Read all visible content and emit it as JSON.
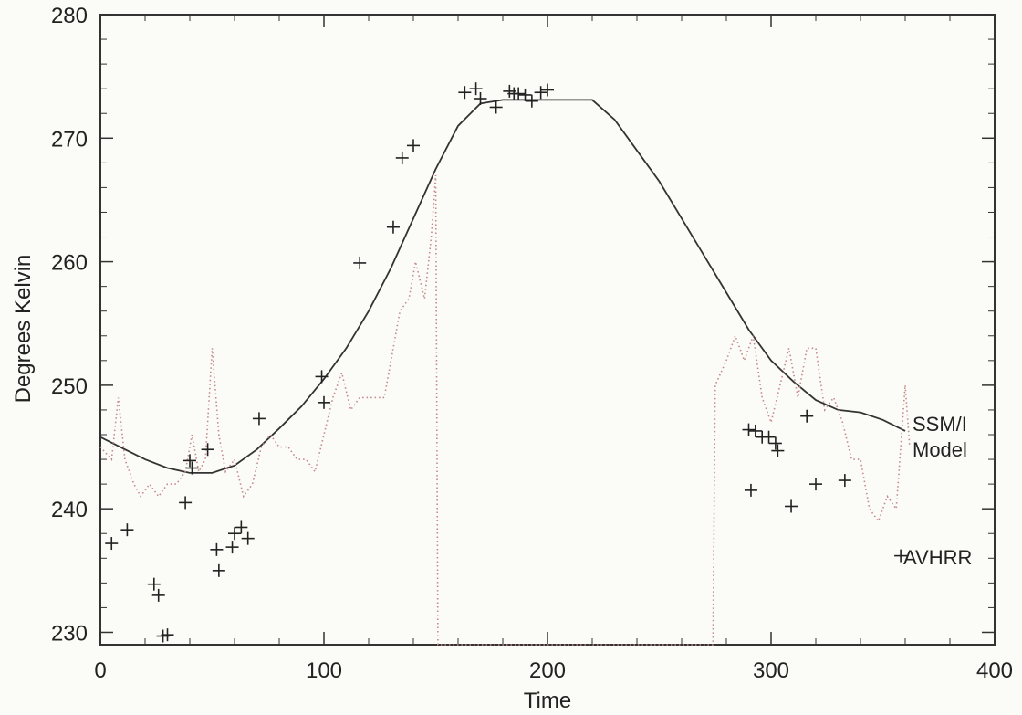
{
  "chart_data": {
    "type": "line",
    "title": "",
    "xlabel": "Time",
    "ylabel": "Degrees Kelvin",
    "xlim": [
      0,
      400
    ],
    "ylim": [
      229,
      280
    ],
    "xticks": [
      0,
      100,
      200,
      300,
      400
    ],
    "yticks": [
      230,
      240,
      250,
      260,
      270,
      280
    ],
    "grid": false,
    "legend": "inline-right",
    "series": [
      {
        "name": "Model",
        "style": "solid",
        "points": [
          [
            0,
            245.8
          ],
          [
            10,
            244.9
          ],
          [
            20,
            244.0
          ],
          [
            30,
            243.3
          ],
          [
            40,
            242.9
          ],
          [
            50,
            242.9
          ],
          [
            60,
            243.5
          ],
          [
            70,
            244.8
          ],
          [
            80,
            246.5
          ],
          [
            90,
            248.3
          ],
          [
            100,
            250.5
          ],
          [
            110,
            253.0
          ],
          [
            120,
            256.0
          ],
          [
            130,
            259.5
          ],
          [
            140,
            263.5
          ],
          [
            150,
            267.5
          ],
          [
            160,
            271.0
          ],
          [
            170,
            272.8
          ],
          [
            180,
            273.1
          ],
          [
            220,
            273.1
          ],
          [
            230,
            271.5
          ],
          [
            240,
            269.0
          ],
          [
            250,
            266.5
          ],
          [
            260,
            263.5
          ],
          [
            270,
            260.5
          ],
          [
            280,
            257.5
          ],
          [
            290,
            254.5
          ],
          [
            300,
            252.0
          ],
          [
            310,
            250.3
          ],
          [
            320,
            248.8
          ],
          [
            330,
            248.0
          ],
          [
            340,
            247.8
          ],
          [
            350,
            247.2
          ],
          [
            360,
            246.3
          ]
        ]
      },
      {
        "name": "SSM/I",
        "style": "dotted",
        "points": [
          [
            0,
            245
          ],
          [
            5,
            244
          ],
          [
            8,
            249
          ],
          [
            11,
            244
          ],
          [
            15,
            242
          ],
          [
            18,
            241
          ],
          [
            22,
            242
          ],
          [
            26,
            241
          ],
          [
            30,
            242
          ],
          [
            34,
            242
          ],
          [
            38,
            243
          ],
          [
            41,
            246
          ],
          [
            44,
            243
          ],
          [
            47,
            244
          ],
          [
            50,
            253
          ],
          [
            53,
            246
          ],
          [
            56,
            243
          ],
          [
            60,
            244
          ],
          [
            64,
            241
          ],
          [
            68,
            242
          ],
          [
            72,
            245
          ],
          [
            76,
            246
          ],
          [
            80,
            245
          ],
          [
            84,
            245
          ],
          [
            88,
            244
          ],
          [
            92,
            244
          ],
          [
            96,
            243
          ],
          [
            100,
            246
          ],
          [
            104,
            249
          ],
          [
            108,
            251
          ],
          [
            112,
            248
          ],
          [
            116,
            249
          ],
          [
            120,
            249
          ],
          [
            124,
            249
          ],
          [
            127,
            249
          ],
          [
            130,
            252
          ],
          [
            134,
            256
          ],
          [
            138,
            257
          ],
          [
            141,
            260
          ],
          [
            145,
            257
          ],
          [
            148,
            262
          ],
          [
            150,
            267
          ],
          [
            151,
            229
          ],
          [
            274,
            229
          ],
          [
            275,
            250
          ],
          [
            280,
            252
          ],
          [
            284,
            254
          ],
          [
            288,
            252
          ],
          [
            292,
            254
          ],
          [
            296,
            249
          ],
          [
            300,
            247
          ],
          [
            304,
            250
          ],
          [
            308,
            253
          ],
          [
            312,
            249
          ],
          [
            316,
            253
          ],
          [
            320,
            253
          ],
          [
            324,
            248
          ],
          [
            328,
            249
          ],
          [
            332,
            247
          ],
          [
            336,
            244
          ],
          [
            340,
            244
          ],
          [
            344,
            240
          ],
          [
            348,
            239
          ],
          [
            352,
            241
          ],
          [
            356,
            240
          ],
          [
            360,
            250
          ],
          [
            362,
            245
          ]
        ]
      },
      {
        "name": "AVHRR",
        "style": "markers",
        "points": [
          [
            5,
            237.2
          ],
          [
            12,
            238.3
          ],
          [
            24,
            233.9
          ],
          [
            26,
            233.0
          ],
          [
            28,
            229.7
          ],
          [
            30,
            229.8
          ],
          [
            38,
            240.5
          ],
          [
            40,
            243.9
          ],
          [
            41,
            243.3
          ],
          [
            48,
            244.8
          ],
          [
            52,
            236.7
          ],
          [
            53,
            235.0
          ],
          [
            59,
            236.9
          ],
          [
            60,
            238.0
          ],
          [
            63,
            238.5
          ],
          [
            66,
            237.6
          ],
          [
            71,
            247.3
          ],
          [
            99,
            250.7
          ],
          [
            100,
            248.6
          ],
          [
            116,
            259.9
          ],
          [
            131,
            262.8
          ],
          [
            135,
            268.4
          ],
          [
            140,
            269.4
          ],
          [
            163,
            273.7
          ],
          [
            168,
            274.0
          ],
          [
            170,
            273.2
          ],
          [
            177,
            272.5
          ],
          [
            183,
            273.8
          ],
          [
            185,
            273.6
          ],
          [
            187,
            273.6
          ],
          [
            190,
            273.5
          ],
          [
            193,
            273.0
          ],
          [
            197,
            273.7
          ],
          [
            200,
            273.9
          ],
          [
            290,
            246.4
          ],
          [
            291,
            241.5
          ],
          [
            293,
            246.3
          ],
          [
            296,
            245.8
          ],
          [
            299,
            245.8
          ],
          [
            302,
            245.3
          ],
          [
            303,
            244.7
          ],
          [
            309,
            240.2
          ],
          [
            316,
            247.5
          ],
          [
            320,
            242.0
          ],
          [
            333,
            242.3
          ],
          [
            358,
            236.2
          ]
        ]
      }
    ],
    "annotations": [
      "SSM/I",
      "Model",
      "AVHRR"
    ]
  }
}
